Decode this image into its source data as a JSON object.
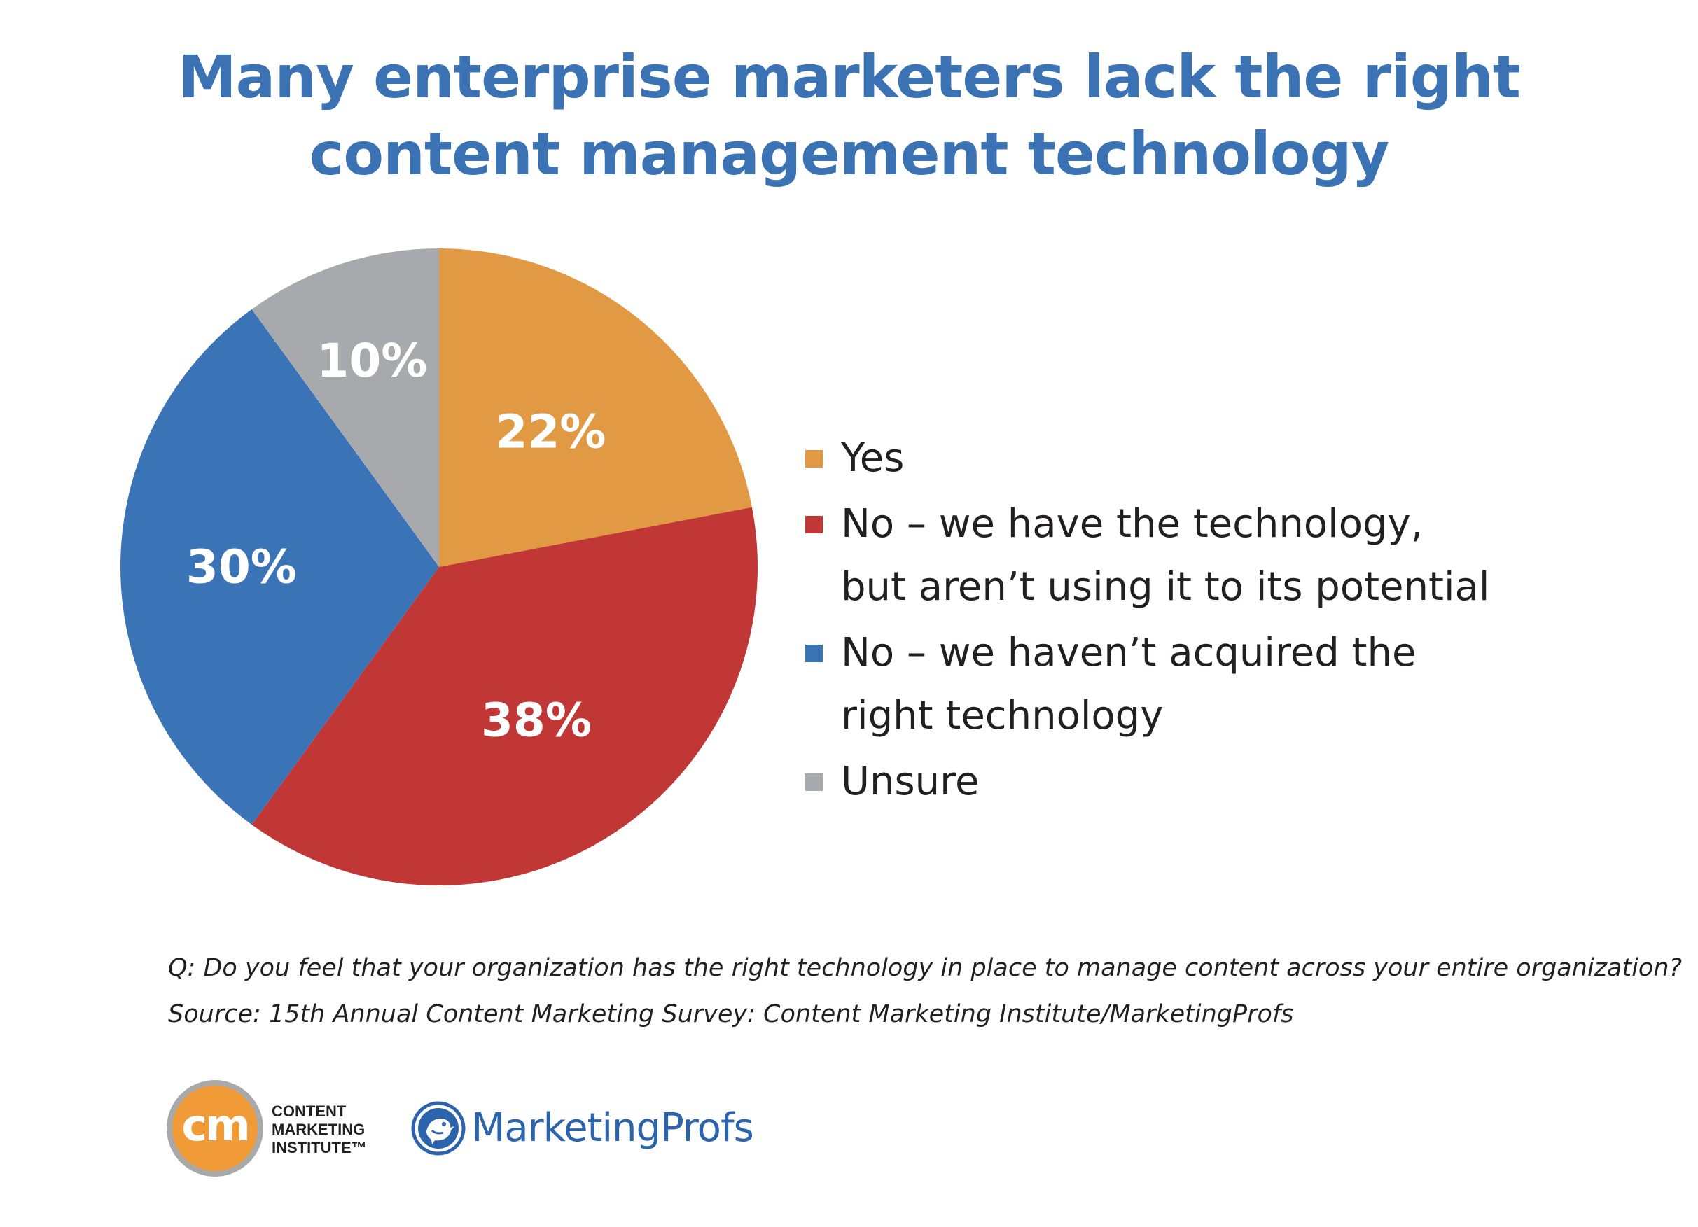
{
  "chart_data": {
    "type": "pie",
    "title": [
      "Many enterprise marketers lack the right",
      "content management technology"
    ],
    "slices": [
      {
        "label": "Yes",
        "value": 22,
        "display": "22%",
        "color": "#e19a43"
      },
      {
        "label": "No – we have the technology, but aren’t using it to its potential",
        "lines": [
          "No – we have the technology,",
          "but aren’t using it to its potential"
        ],
        "value": 38,
        "display": "38%",
        "color": "#c03735"
      },
      {
        "label": "No – we haven’t acquired the right technology",
        "lines": [
          "No – we haven’t acquired the",
          "right technology"
        ],
        "value": 30,
        "display": "30%",
        "color": "#3b74b6"
      },
      {
        "label": "Unsure",
        "value": 10,
        "display": "10%",
        "color": "#a7a9ac"
      }
    ],
    "legend_position": "right"
  },
  "footnote": {
    "question": "Q: Do you feel that your organization has the right technology in place to manage content across your entire organization?",
    "source": "Source: 15th Annual Content Marketing Survey: Content Marketing Institute/MarketingProfs"
  },
  "logos": {
    "cmi": {
      "mark": "cm",
      "lines": [
        "CONTENT",
        "MARKETING",
        "INSTITUTE™"
      ],
      "colors": {
        "circle": "#f19b38",
        "ring": "#a9a9a9"
      }
    },
    "marketingprofs": {
      "name": "MarketingProfs",
      "color": "#2b63ad"
    }
  },
  "colors": {
    "title": "#3b72b4",
    "text": "#231f20",
    "background": "#ffffff"
  }
}
